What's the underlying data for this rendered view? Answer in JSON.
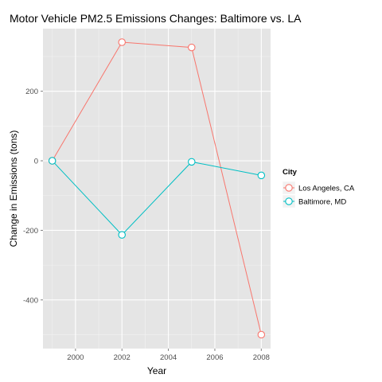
{
  "chart_data": {
    "type": "line",
    "title": "Motor Vehicle PM2.5 Emissions Changes: Baltimore vs. LA",
    "xlabel": "Year",
    "ylabel": "Change in Emissions (tons)",
    "x": [
      1999,
      2002,
      2005,
      2008
    ],
    "xlim": [
      1998.6,
      2008.4
    ],
    "ylim": [
      -540,
      380
    ],
    "xticks": [
      2000,
      2002,
      2004,
      2006,
      2008
    ],
    "yticks": [
      -400,
      -200,
      0,
      200
    ],
    "xtick_labels": [
      "2000",
      "2002",
      "2004",
      "2006",
      "2008"
    ],
    "ytick_labels": [
      "-400",
      "-200",
      "0",
      "200"
    ],
    "grid": true,
    "legend": {
      "title": "City",
      "position": "right"
    },
    "series": [
      {
        "name": "Los Angeles, CA",
        "color": "#f8766d",
        "values": [
          0,
          341,
          326,
          -500
        ]
      },
      {
        "name": "Baltimore, MD",
        "color": "#00bfc4",
        "values": [
          0,
          -213,
          -3,
          -42
        ]
      }
    ]
  }
}
